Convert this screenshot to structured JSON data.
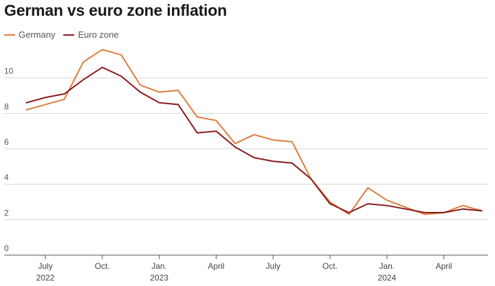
{
  "chart_data": {
    "type": "line",
    "title": "German vs euro zone inflation",
    "xlabel": "",
    "ylabel": "",
    "ylim": [
      0,
      12
    ],
    "yticks": [
      0,
      2,
      4,
      6,
      8,
      10
    ],
    "ytick_labels": [
      "0",
      "2",
      "4",
      "6",
      "8",
      "10"
    ],
    "grid": true,
    "legend_position": "top-left",
    "x": [
      "2022-06",
      "2022-07",
      "2022-08",
      "2022-09",
      "2022-10",
      "2022-11",
      "2022-12",
      "2023-01",
      "2023-02",
      "2023-03",
      "2023-04",
      "2023-05",
      "2023-06",
      "2023-07",
      "2023-08",
      "2023-09",
      "2023-10",
      "2023-11",
      "2023-12",
      "2024-01",
      "2024-02",
      "2024-03",
      "2024-04",
      "2024-05",
      "2024-06"
    ],
    "xticks": [
      {
        "x": "2022-07",
        "label": "July",
        "sublabel": "2022"
      },
      {
        "x": "2022-10",
        "label": "Oct.",
        "sublabel": ""
      },
      {
        "x": "2023-01",
        "label": "Jan.",
        "sublabel": "2023"
      },
      {
        "x": "2023-04",
        "label": "April",
        "sublabel": ""
      },
      {
        "x": "2023-07",
        "label": "July",
        "sublabel": ""
      },
      {
        "x": "2023-10",
        "label": "Oct.",
        "sublabel": ""
      },
      {
        "x": "2024-01",
        "label": "Jan.",
        "sublabel": "2024"
      },
      {
        "x": "2024-04",
        "label": "April",
        "sublabel": ""
      }
    ],
    "series": [
      {
        "name": "Germany",
        "color": "#e07b39",
        "values": [
          8.2,
          8.5,
          8.8,
          10.9,
          11.6,
          11.3,
          9.6,
          9.2,
          9.3,
          7.8,
          7.6,
          6.3,
          6.8,
          6.5,
          6.4,
          4.3,
          3.0,
          2.3,
          3.8,
          3.1,
          2.7,
          2.3,
          2.4,
          2.8,
          2.5
        ]
      },
      {
        "name": "Euro zone",
        "color": "#8b1a1a",
        "values": [
          8.6,
          8.9,
          9.1,
          9.9,
          10.6,
          10.1,
          9.2,
          8.6,
          8.5,
          6.9,
          7.0,
          6.1,
          5.5,
          5.3,
          5.2,
          4.3,
          2.9,
          2.4,
          2.9,
          2.8,
          2.6,
          2.4,
          2.4,
          2.6,
          2.5
        ]
      }
    ]
  }
}
